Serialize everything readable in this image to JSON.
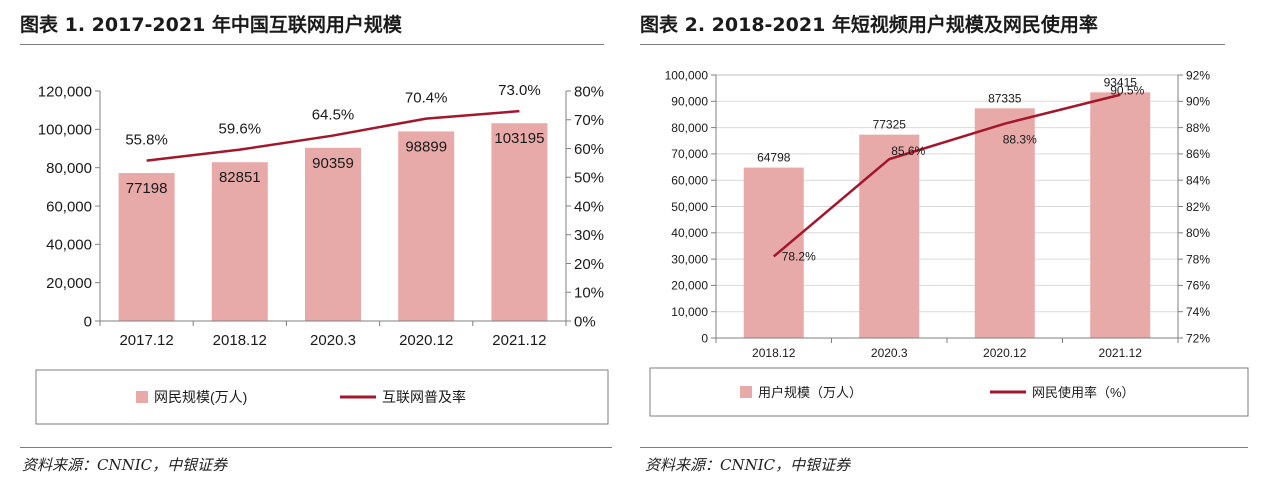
{
  "charts": [
    {
      "title": "图表 1. 2017-2021 年中国互联网用户规模",
      "source": "资料来源：CNNIC，中银证券",
      "chart_data": {
        "type": "bar",
        "categories": [
          "2017.12",
          "2018.12",
          "2020.3",
          "2020.12",
          "2021.12"
        ],
        "series": [
          {
            "name": "网民规模(万人)",
            "type": "bar",
            "axis": "left",
            "values": [
              77198,
              82851,
              90359,
              98899,
              103195
            ],
            "labels": [
              "77198",
              "82851",
              "90359",
              "98899",
              "103195"
            ]
          },
          {
            "name": "互联网普及率",
            "type": "line",
            "axis": "right",
            "values": [
              55.8,
              59.6,
              64.5,
              70.4,
              73.0
            ],
            "labels": [
              "55.8%",
              "59.6%",
              "64.5%",
              "70.4%",
              "73.0%"
            ]
          }
        ],
        "ylim_left": [
          0,
          120000
        ],
        "yticks_left": [
          "0",
          "20,000",
          "40,000",
          "60,000",
          "80,000",
          "100,000",
          "120,000"
        ],
        "ylim_right": [
          0,
          80
        ],
        "yticks_right": [
          "0%",
          "10%",
          "20%",
          "30%",
          "40%",
          "50%",
          "60%",
          "70%",
          "80%"
        ],
        "legend_position": "bottom",
        "colors": {
          "bar": "#e8a9a9",
          "line": "#a3172c"
        }
      }
    },
    {
      "title": "图表 2. 2018-2021 年短视频用户规模及网民使用率",
      "source": "资料来源：CNNIC，中银证券",
      "chart_data": {
        "type": "bar",
        "categories": [
          "2018.12",
          "2020.3",
          "2020.12",
          "2021.12"
        ],
        "series": [
          {
            "name": "用户规模（万人）",
            "type": "bar",
            "axis": "left",
            "values": [
              64798,
              77325,
              87335,
              93415
            ],
            "labels": [
              "64798",
              "77325",
              "87335",
              "93415"
            ]
          },
          {
            "name": "网民使用率（%）",
            "type": "line",
            "axis": "right",
            "values": [
              78.2,
              85.6,
              88.3,
              90.5
            ],
            "labels": [
              "78.2%",
              "85.6%",
              "88.3%",
              "90.5%"
            ]
          }
        ],
        "ylim_left": [
          0,
          100000
        ],
        "yticks_left": [
          "0",
          "10,000",
          "20,000",
          "30,000",
          "40,000",
          "50,000",
          "60,000",
          "70,000",
          "80,000",
          "90,000",
          "100,000"
        ],
        "ylim_right": [
          72,
          92
        ],
        "yticks_right": [
          "72%",
          "74%",
          "76%",
          "78%",
          "80%",
          "82%",
          "84%",
          "86%",
          "88%",
          "90%",
          "92%"
        ],
        "legend_position": "bottom",
        "colors": {
          "bar": "#e8a9a9",
          "line": "#a3172c"
        }
      }
    }
  ]
}
